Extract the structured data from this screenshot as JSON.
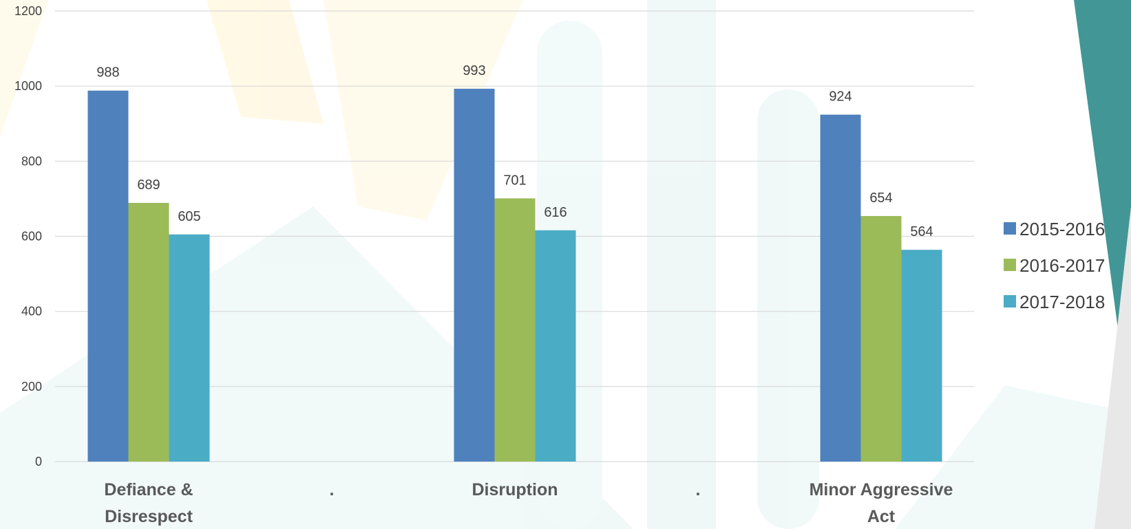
{
  "chart_data": {
    "type": "bar",
    "categories": [
      [
        "Defiance &",
        "Disrespect"
      ],
      [
        "."
      ],
      [
        "Disruption"
      ],
      [
        "."
      ],
      [
        "Minor Aggressive",
        "Act"
      ]
    ],
    "series": [
      {
        "name": "2015-2016",
        "color": "#4F81BD",
        "values": [
          988,
          null,
          993,
          null,
          924
        ]
      },
      {
        "name": "2016-2017",
        "color": "#9BBB59",
        "values": [
          689,
          null,
          701,
          null,
          654
        ]
      },
      {
        "name": "2017-2018",
        "color": "#4BACC6",
        "values": [
          605,
          null,
          616,
          null,
          564
        ]
      }
    ],
    "ylim": [
      0,
      1200
    ],
    "yticks": [
      0,
      200,
      400,
      600,
      800,
      1000,
      1200
    ],
    "grid": true,
    "legend_position": "right",
    "data_labels": true,
    "gridline_color": "#D9D9D9"
  }
}
